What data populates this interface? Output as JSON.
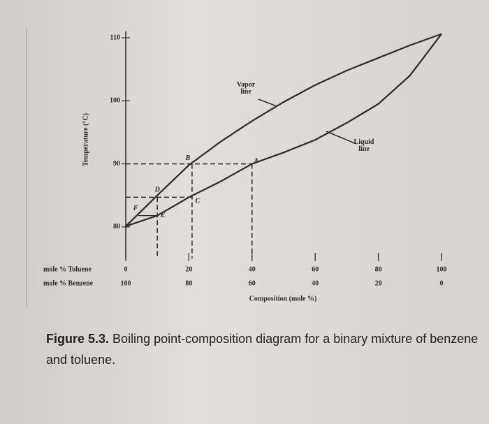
{
  "chart_data": {
    "type": "line",
    "y_label": "Temperature (°C)",
    "x_label": "Composition (mole %)",
    "x_row_labels": [
      "mole % Toluene",
      "mole % Benzene"
    ],
    "x": [
      0,
      10,
      20,
      30,
      40,
      50,
      60,
      70,
      80,
      90,
      100
    ],
    "series": [
      {
        "color": "#2a2a2a",
        "values": [
          80.1,
          85,
          89.8,
          93.5,
          96.8,
          99.8,
          102.5,
          104.8,
          106.8,
          108.8,
          110.6
        ]
      },
      {
        "color": "#2a2a2a",
        "values": [
          80.1,
          81.8,
          84.7,
          87.2,
          90,
          91.8,
          93.8,
          96.5,
          99.5,
          104,
          110.6
        ]
      }
    ],
    "annotations": [
      {
        "lines": [
          "Vapor",
          "line"
        ]
      },
      {
        "lines": [
          "Liquid",
          "line"
        ]
      }
    ],
    "points": [
      {
        "label": "A",
        "x": 40,
        "y": 90
      },
      {
        "label": "B",
        "x": 21,
        "y": 90
      },
      {
        "label": "C",
        "x": 21,
        "y": 84.7
      },
      {
        "label": "D",
        "x": 10,
        "y": 84.7
      },
      {
        "label": "E",
        "x": 10,
        "y": 81.8
      },
      {
        "label": "F",
        "x": 4,
        "y": 81.8
      }
    ],
    "xlim": [
      0,
      100
    ],
    "xticks": [
      0,
      20,
      40,
      60,
      80,
      100
    ],
    "x2ticks": [
      100,
      80,
      60,
      40,
      20,
      0
    ],
    "ylim": [
      75,
      111
    ],
    "yticks": [
      80,
      90,
      100,
      110
    ]
  },
  "caption": {
    "label": "Figure 5.3.",
    "text": "Boiling point-composition diagram for a binary mixture of benzene and toluene."
  }
}
